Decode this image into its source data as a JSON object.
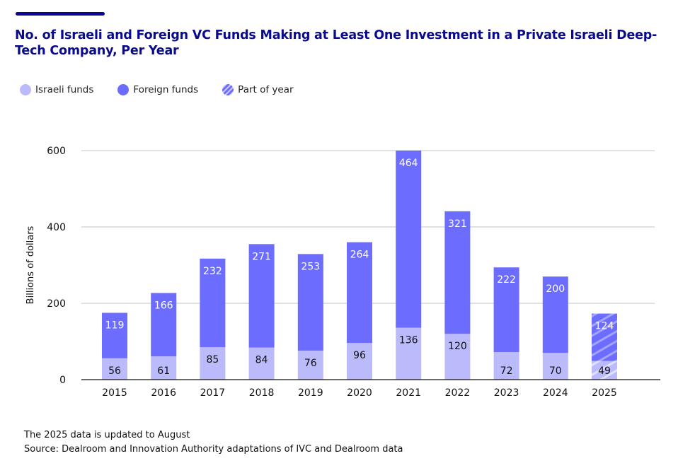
{
  "header": {
    "title": "No. of Israeli and Foreign VC Funds Making at Least One Investment in a Private Israeli Deep-Tech Company, Per Year"
  },
  "colors": {
    "title": "#0a0a8c",
    "israeli": "#bbbbfc",
    "foreign": "#6c6cff",
    "partial_stripe": "#d6d6ff",
    "grid": "#bcc4c6",
    "axis": "#111111"
  },
  "legend": {
    "items": [
      {
        "label": "Israeli funds",
        "key": "israeli"
      },
      {
        "label": "Foreign funds",
        "key": "foreign"
      },
      {
        "label": "Part of year",
        "key": "partial"
      }
    ]
  },
  "footnotes": {
    "note": "The 2025 data is updated to August",
    "source": "Source: Dealroom and Innovation Authority adaptations of IVC and Dealroom data"
  },
  "chart_data": {
    "type": "bar",
    "stacked": true,
    "title": "No. of Israeli and Foreign VC Funds Making at Least One Investment in a Private Israeli Deep-Tech Company, Per Year",
    "xlabel": "",
    "ylabel": "Billions of dollars",
    "ylim": [
      0,
      600
    ],
    "yticks": [
      0,
      200,
      400,
      600
    ],
    "grid": true,
    "legend_position": "top-left",
    "categories": [
      "2015",
      "2016",
      "2017",
      "2018",
      "2019",
      "2020",
      "2021",
      "2022",
      "2023",
      "2024",
      "2025"
    ],
    "series": [
      {
        "name": "Israeli funds",
        "values": [
          56,
          61,
          85,
          84,
          76,
          96,
          136,
          120,
          72,
          70,
          49
        ]
      },
      {
        "name": "Foreign funds",
        "values": [
          119,
          166,
          232,
          271,
          253,
          264,
          464,
          321,
          222,
          200,
          124
        ]
      }
    ],
    "partial_year_categories": [
      "2025"
    ],
    "annotations": [
      "The 2025 data is updated to August"
    ]
  }
}
